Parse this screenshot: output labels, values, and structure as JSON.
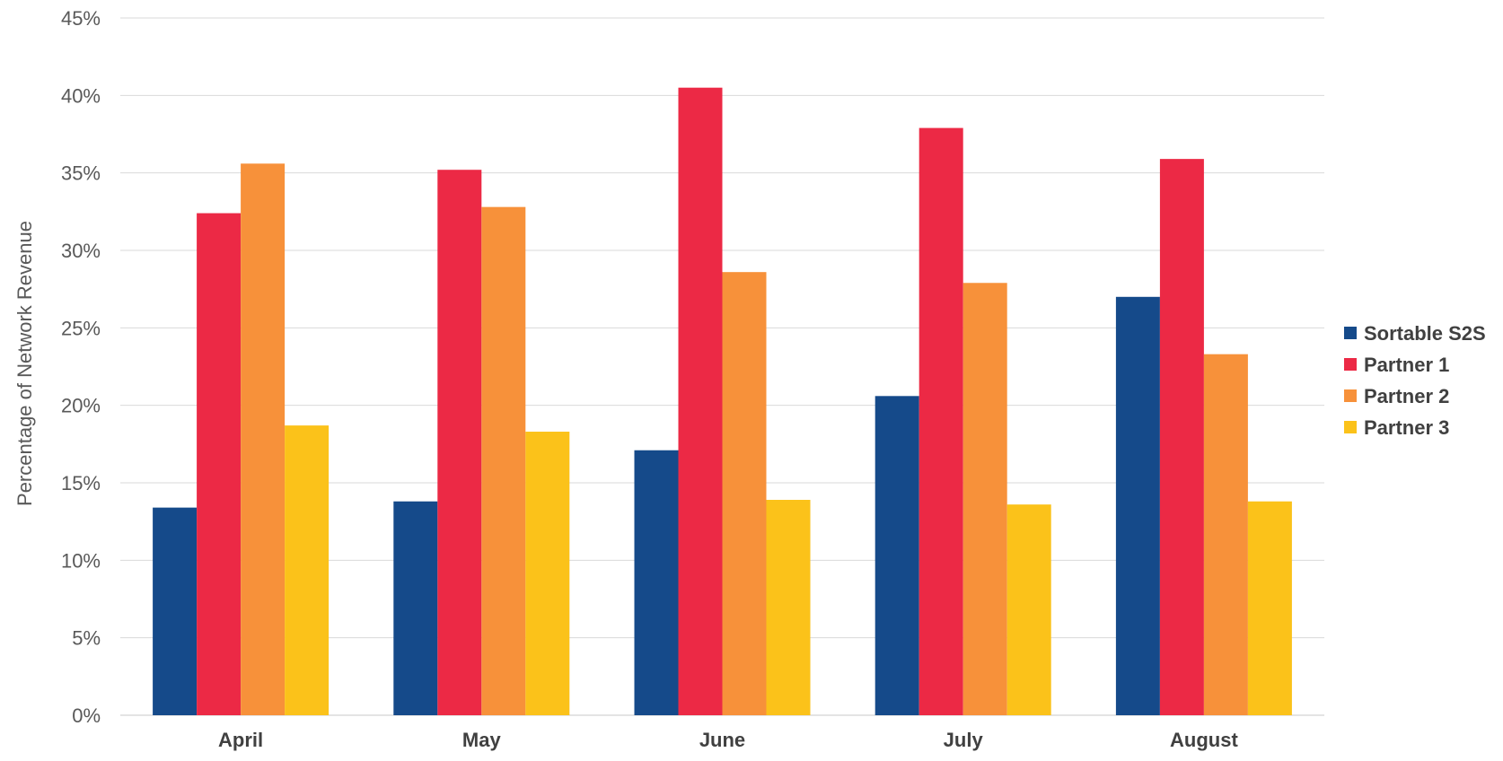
{
  "chart_data": {
    "type": "bar",
    "title": "",
    "xlabel": "",
    "ylabel": "Percentage of Network Revenue",
    "categories": [
      "April",
      "May",
      "June",
      "July",
      "August"
    ],
    "series": [
      {
        "name": "Sortable S2S",
        "color": "#154a8a",
        "values": [
          13.4,
          13.8,
          17.1,
          20.6,
          27.0
        ]
      },
      {
        "name": "Partner 1",
        "color": "#ec2945",
        "values": [
          32.4,
          35.2,
          40.5,
          37.9,
          35.9
        ]
      },
      {
        "name": "Partner 2",
        "color": "#f7913a",
        "values": [
          35.6,
          32.8,
          28.6,
          27.9,
          23.3
        ]
      },
      {
        "name": "Partner 3",
        "color": "#fbc21a",
        "values": [
          18.7,
          18.3,
          13.9,
          13.6,
          13.8
        ]
      }
    ],
    "ylim": [
      0,
      45
    ],
    "yticks": [
      "0%",
      "5%",
      "10%",
      "15%",
      "20%",
      "25%",
      "30%",
      "35%",
      "40%",
      "45%"
    ],
    "grid": true,
    "legend_position": "right"
  }
}
